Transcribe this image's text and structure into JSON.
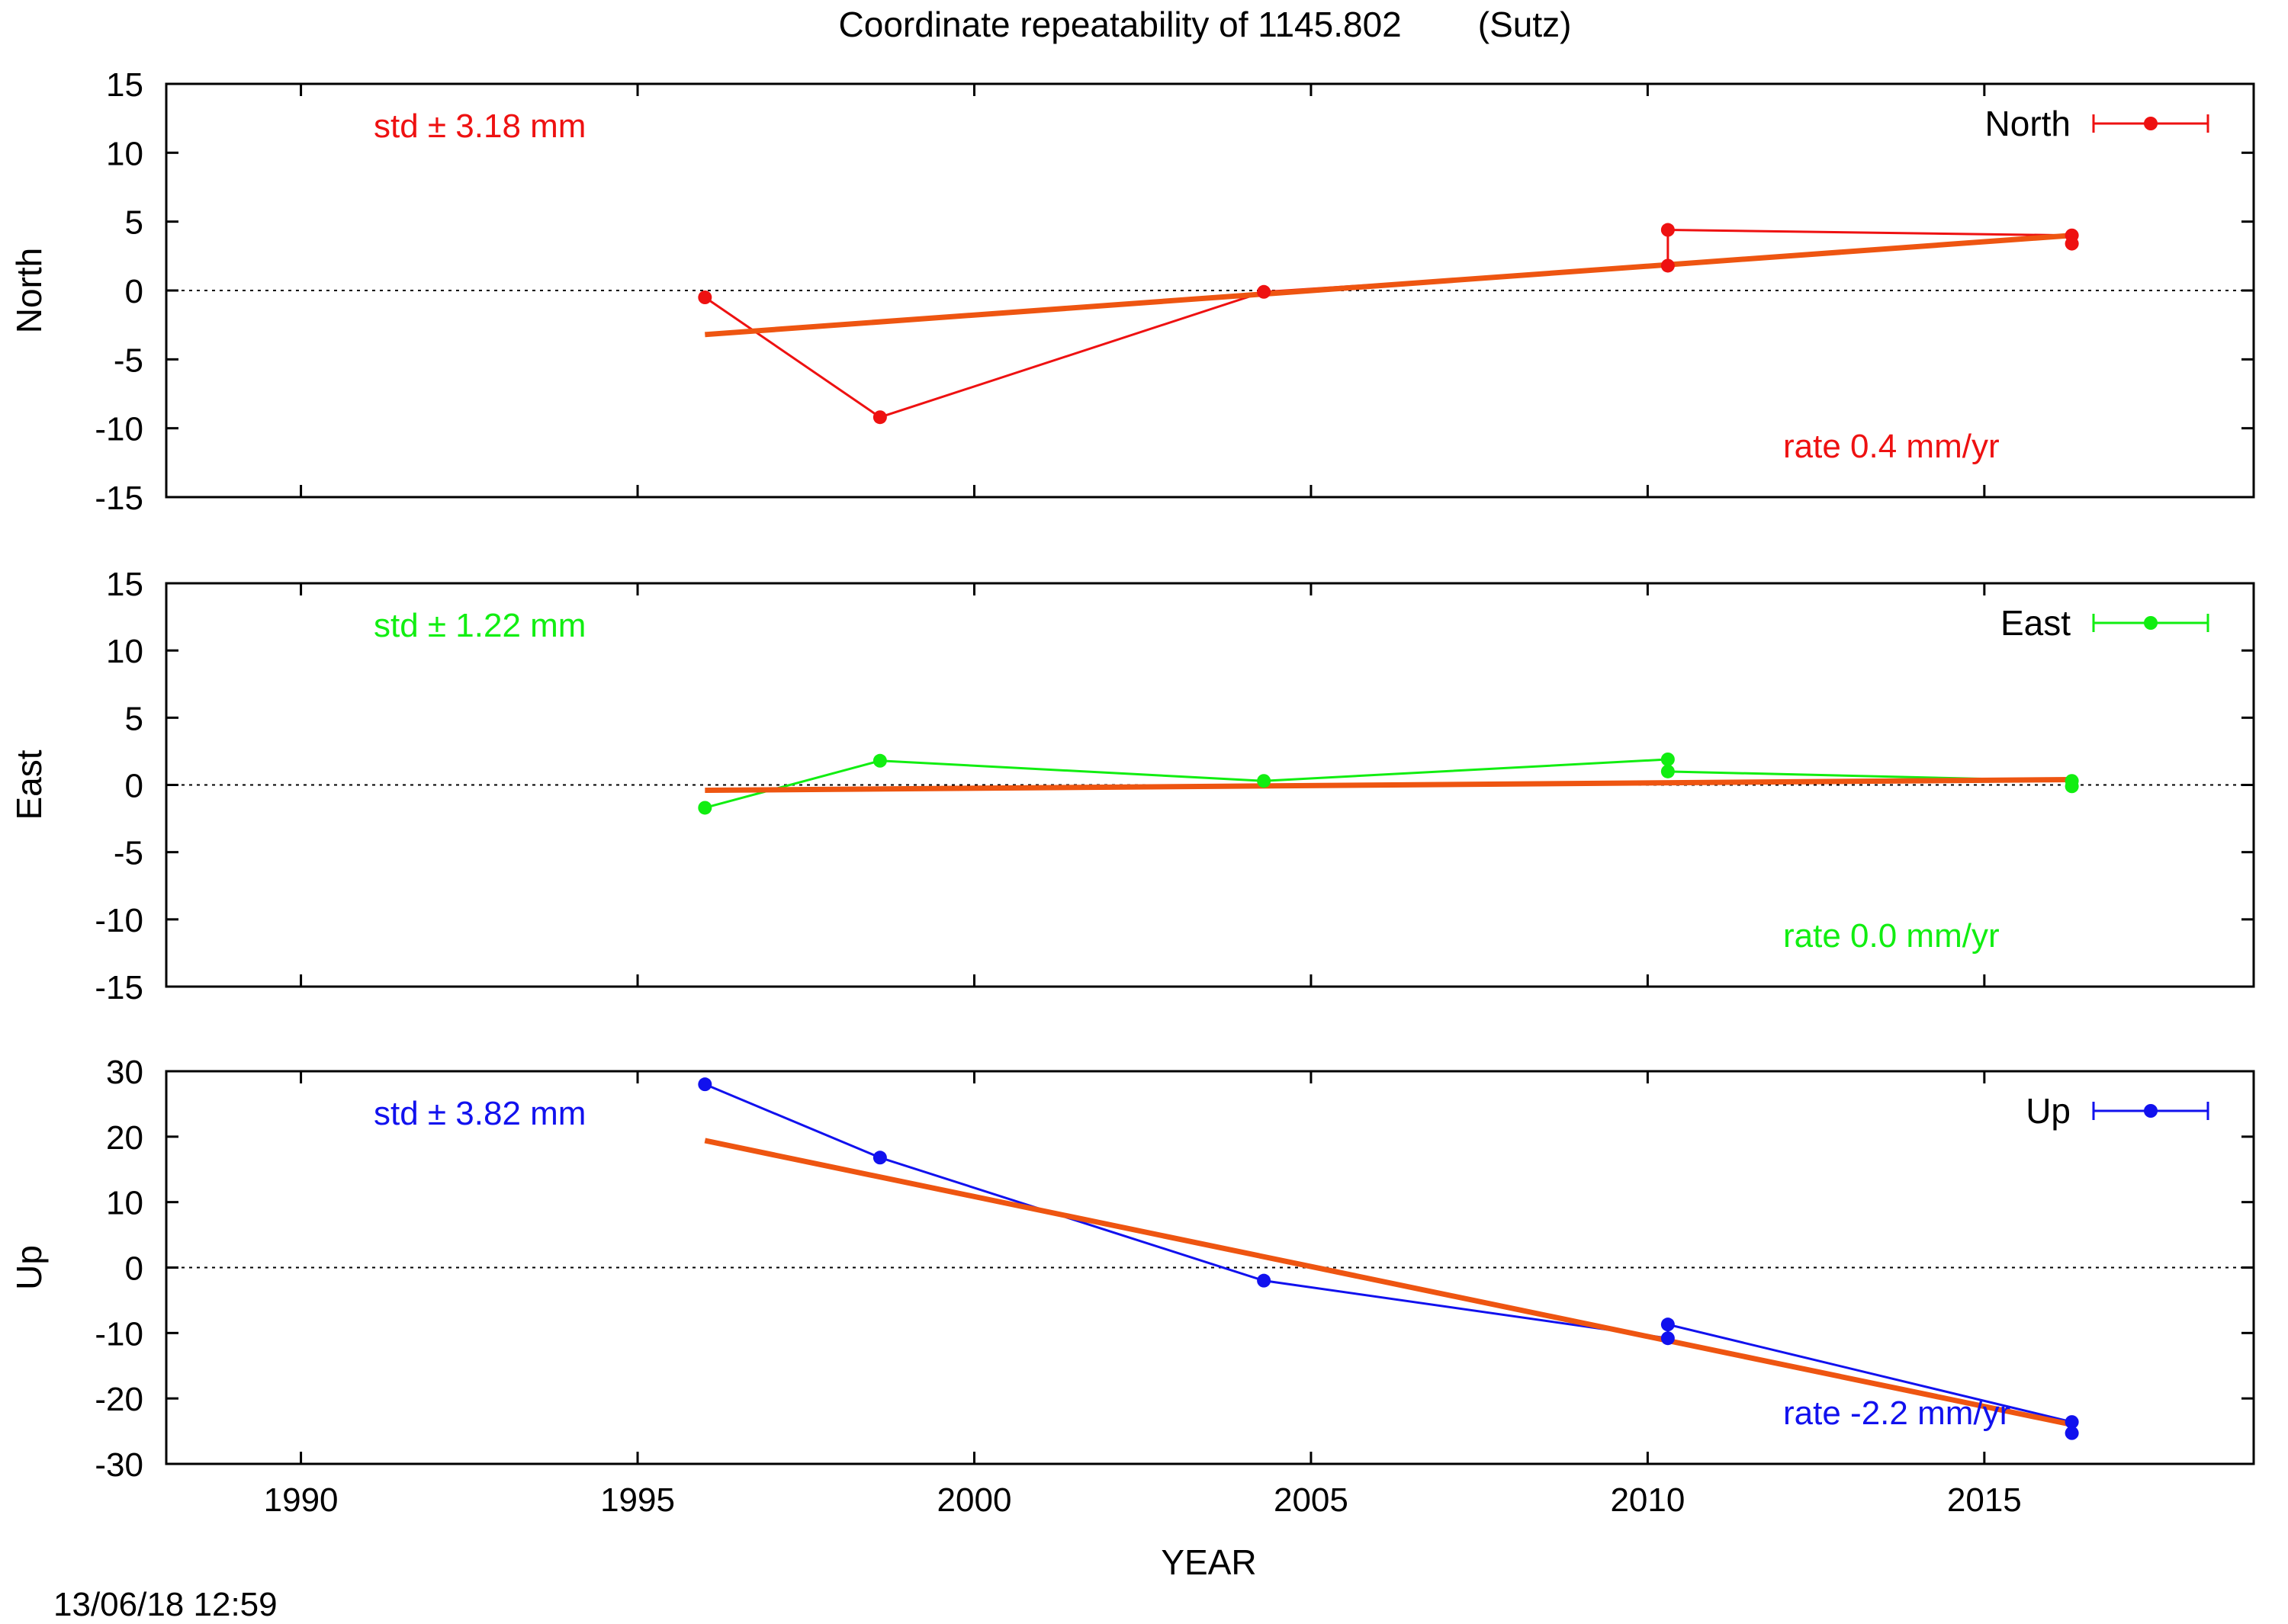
{
  "chart_data": {
    "type": "line",
    "title": "Coordinate repeatability of 1145.802",
    "title_suffix": "(Sutz)",
    "xlabel": "YEAR",
    "xlim": [
      1988,
      2019
    ],
    "xticks": [
      1990,
      1995,
      2000,
      2005,
      2010,
      2015
    ],
    "grid": false,
    "legend_position": "top-right",
    "trend_color": "#ee5511",
    "panels": [
      {
        "name": "North",
        "ylabel": "North",
        "color": "#ee1111",
        "ylim": [
          -15,
          15
        ],
        "yticks": [
          -15,
          -10,
          -5,
          0,
          5,
          10,
          15
        ],
        "std_text": "std ± 3.18 mm",
        "rate_text": "rate  0.4 mm/yr",
        "legend": "North",
        "series": {
          "x": [
            1996.0,
            1998.6,
            2004.3,
            2010.3,
            2010.3,
            2016.3,
            2016.3
          ],
          "y": [
            -0.5,
            -9.2,
            -0.1,
            1.8,
            4.4,
            4.0,
            3.4
          ]
        },
        "trend": {
          "x": [
            1996.0,
            2016.3
          ],
          "y": [
            -3.2,
            4.0
          ]
        }
      },
      {
        "name": "East",
        "ylabel": "East",
        "color": "#11ee11",
        "ylim": [
          -15,
          15
        ],
        "yticks": [
          -15,
          -10,
          -5,
          0,
          5,
          10,
          15
        ],
        "std_text": "std ± 1.22 mm",
        "rate_text": "rate  0.0 mm/yr",
        "legend": "East",
        "series": {
          "x": [
            1996.0,
            1998.6,
            2004.3,
            2010.3,
            2010.3,
            2016.3,
            2016.3
          ],
          "y": [
            -1.7,
            1.8,
            0.3,
            1.9,
            1.0,
            0.3,
            -0.1
          ]
        },
        "trend": {
          "x": [
            1996.0,
            2016.3
          ],
          "y": [
            -0.4,
            0.4
          ]
        }
      },
      {
        "name": "Up",
        "ylabel": "Up",
        "color": "#1111ee",
        "ylim": [
          -30,
          30
        ],
        "yticks": [
          -30,
          -20,
          -10,
          0,
          10,
          20,
          30
        ],
        "std_text": "std ± 3.82 mm",
        "rate_text": "rate -2.2 mm/yr",
        "legend": "Up",
        "series": {
          "x": [
            1996.0,
            1998.6,
            2004.3,
            2010.3,
            2010.3,
            2016.3,
            2016.3
          ],
          "y": [
            28.0,
            16.8,
            -2.0,
            -10.8,
            -8.7,
            -23.6,
            -25.3
          ]
        },
        "trend": {
          "x": [
            1996.0,
            2016.3
          ],
          "y": [
            19.4,
            -24.0
          ]
        }
      }
    ]
  },
  "footer": {
    "timestamp": "13/06/18 12:59"
  }
}
